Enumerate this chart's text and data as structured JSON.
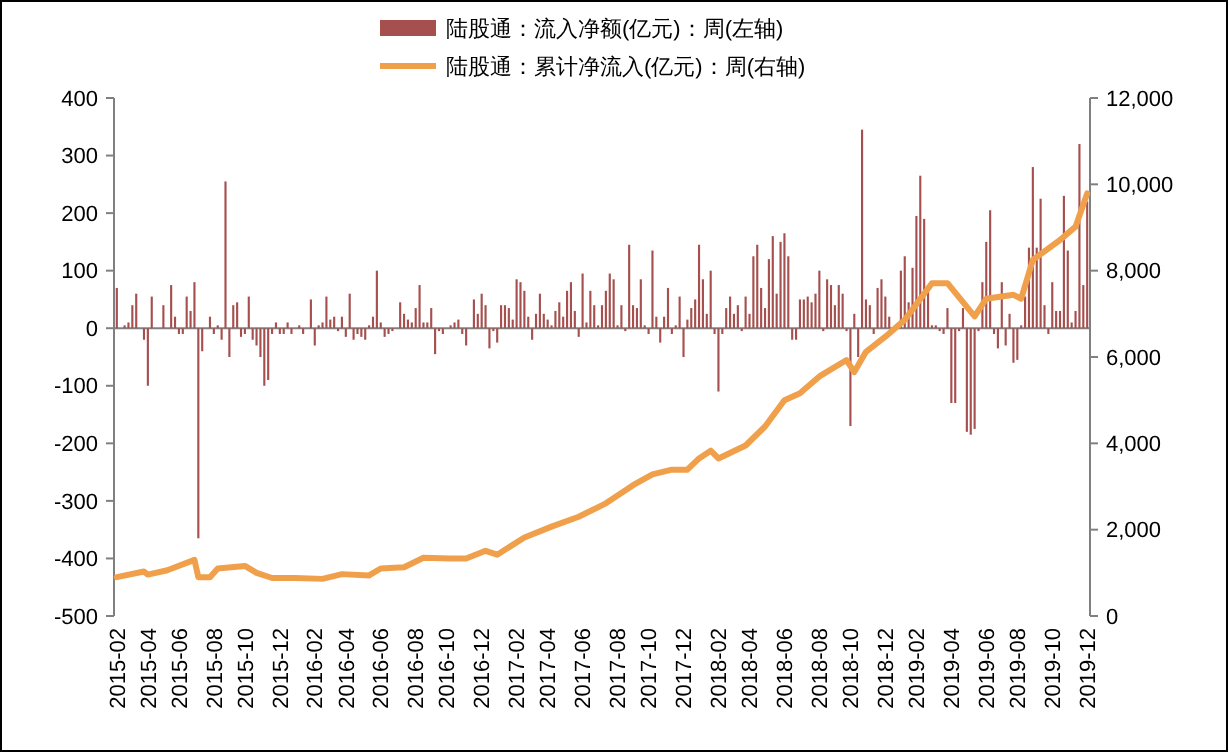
{
  "chart_data": {
    "type": "bar",
    "legend": "top",
    "categories": [
      "2015-02",
      null,
      null,
      null,
      null,
      null,
      null,
      null,
      "2015-04",
      null,
      null,
      null,
      null,
      null,
      null,
      null,
      "2015-06",
      null,
      null,
      null,
      null,
      null,
      null,
      null,
      null,
      "2015-08",
      null,
      null,
      null,
      null,
      null,
      null,
      null,
      "2015-10",
      null,
      null,
      null,
      null,
      null,
      null,
      null,
      null,
      "2015-12",
      null,
      null,
      null,
      null,
      null,
      null,
      null,
      null,
      "2016-02",
      null,
      null,
      null,
      null,
      null,
      null,
      null,
      "2016-04",
      null,
      null,
      null,
      null,
      null,
      null,
      null,
      null,
      "2016-06",
      null,
      null,
      null,
      null,
      null,
      null,
      null,
      null,
      "2016-08",
      null,
      null,
      null,
      null,
      null,
      null,
      null,
      "2016-10",
      null,
      null,
      null,
      null,
      null,
      null,
      null,
      null,
      "2016-12",
      null,
      null,
      null,
      null,
      null,
      null,
      null,
      null,
      "2017-02",
      null,
      null,
      null,
      null,
      null,
      null,
      null,
      "2017-04",
      null,
      null,
      null,
      null,
      null,
      null,
      null,
      null,
      "2017-06",
      null,
      null,
      null,
      null,
      null,
      null,
      null,
      null,
      "2017-08",
      null,
      null,
      null,
      null,
      null,
      null,
      null,
      "2017-10",
      null,
      null,
      null,
      null,
      null,
      null,
      null,
      null,
      "2017-12",
      null,
      null,
      null,
      null,
      null,
      null,
      null,
      null,
      "2018-02",
      null,
      null,
      null,
      null,
      null,
      null,
      null,
      "2018-04",
      null,
      null,
      null,
      null,
      null,
      null,
      null,
      null,
      "2018-06",
      null,
      null,
      null,
      null,
      null,
      null,
      null,
      null,
      "2018-08",
      null,
      null,
      null,
      null,
      null,
      null,
      null,
      "2018-10",
      null,
      null,
      null,
      null,
      null,
      null,
      null,
      null,
      "2018-12",
      null,
      null,
      null,
      null,
      null,
      null,
      null,
      "2019-02",
      null,
      null,
      null,
      null,
      null,
      null,
      null,
      null,
      "2019-04",
      null,
      null,
      null,
      null,
      null,
      null,
      null,
      null,
      "2019-06",
      null,
      null,
      null,
      null,
      null,
      null,
      null,
      "2019-08",
      null,
      null,
      null,
      null,
      null,
      null,
      null,
      null,
      "2019-10",
      null,
      null,
      null,
      null,
      null,
      null,
      null,
      null,
      "2019-12"
    ],
    "ylim": [
      -500,
      400
    ],
    "yticks": [
      -500,
      -400,
      -300,
      -200,
      -100,
      0,
      100,
      200,
      300,
      400
    ],
    "y2lim": [
      0,
      12000
    ],
    "y2ticks": [
      {
        "value": 0,
        "label": "0"
      },
      {
        "value": 2000,
        "label": "2,000"
      },
      {
        "value": 4000,
        "label": "4,000"
      },
      {
        "value": 6000,
        "label": "6,000"
      },
      {
        "value": 8000,
        "label": "8,000"
      },
      {
        "value": 10000,
        "label": "10,000"
      },
      {
        "value": 12000,
        "label": "12,000"
      }
    ],
    "series": [
      {
        "name": "陆股通：流入净额(亿元)：周(左轴)",
        "color": "#a5504e",
        "values": [
          70,
          null,
          5,
          10,
          40,
          60,
          null,
          -20,
          -100,
          55,
          null,
          null,
          40,
          null,
          75,
          20,
          -10,
          -10,
          55,
          30,
          80,
          -365,
          -40,
          null,
          20,
          -10,
          5,
          -20,
          255,
          -50,
          40,
          45,
          -15,
          -10,
          55,
          -20,
          -30,
          -50,
          -100,
          -90,
          -10,
          10,
          -10,
          -10,
          10,
          -10,
          null,
          5,
          -10,
          null,
          50,
          -30,
          5,
          10,
          55,
          15,
          20,
          -5,
          20,
          -15,
          60,
          -20,
          -10,
          -15,
          -20,
          5,
          20,
          100,
          10,
          -15,
          -10,
          -5,
          null,
          45,
          25,
          15,
          10,
          35,
          75,
          10,
          10,
          35,
          -45,
          -5,
          -10,
          null,
          5,
          10,
          15,
          -10,
          -30,
          null,
          50,
          25,
          60,
          40,
          -35,
          -5,
          -25,
          40,
          40,
          35,
          15,
          85,
          80,
          65,
          20,
          -20,
          25,
          60,
          25,
          15,
          5,
          30,
          45,
          20,
          65,
          80,
          30,
          -15,
          95,
          10,
          65,
          40,
          5,
          40,
          65,
          95,
          85,
          5,
          40,
          -5,
          145,
          40,
          35,
          85,
          5,
          -10,
          135,
          20,
          -25,
          20,
          70,
          -10,
          5,
          55,
          -50,
          15,
          35,
          50,
          145,
          85,
          25,
          100,
          -10,
          -110,
          -10,
          35,
          55,
          25,
          40,
          -5,
          55,
          25,
          125,
          145,
          70,
          35,
          120,
          160,
          60,
          150,
          165,
          125,
          -20,
          -20,
          50,
          50,
          55,
          45,
          60,
          100,
          -5,
          85,
          75,
          40,
          75,
          60,
          -5,
          -170,
          25,
          -50,
          345,
          50,
          40,
          -10,
          70,
          85,
          55,
          20,
          -5,
          5,
          100,
          125,
          45,
          105,
          195,
          265,
          190,
          75,
          5,
          5,
          -5,
          -10,
          35,
          -130,
          -130,
          -5,
          35,
          -180,
          -185,
          -175,
          -5,
          80,
          150,
          205,
          -10,
          -35,
          80,
          -30,
          25,
          -60,
          -55,
          5,
          55,
          140,
          280,
          140,
          225,
          40,
          -10,
          80,
          30,
          30,
          230,
          135,
          10,
          30,
          320,
          75,
          220
        ]
      },
      {
        "name": "陆股通：累计净流入(亿元)：周(右轴)",
        "type": "line",
        "axis": "y2",
        "color": "#f0a04b",
        "values": [
          900,
          null,
          null,
          null,
          null,
          null,
          null,
          1030,
          960,
          null,
          null,
          null,
          null,
          1060,
          null,
          null,
          null,
          null,
          null,
          null,
          1300,
          900,
          null,
          null,
          900,
          null,
          1100,
          null,
          null,
          null,
          null,
          null,
          null,
          1160,
          null,
          null,
          1000,
          null,
          null,
          null,
          880,
          null,
          null,
          null,
          null,
          null,
          880,
          null,
          null,
          null,
          null,
          null,
          null,
          860,
          null,
          null,
          null,
          null,
          970,
          null,
          null,
          null,
          null,
          null,
          null,
          940,
          null,
          null,
          1100,
          null,
          null,
          null,
          null,
          null,
          1130,
          null,
          null,
          null,
          null,
          1350,
          null,
          null,
          null,
          null,
          null,
          null,
          1330,
          null,
          null,
          null,
          1330,
          null,
          null,
          null,
          null,
          1510,
          null,
          null,
          1420,
          null,
          null,
          null,
          null,
          null,
          null,
          1820,
          null,
          null,
          null,
          null,
          null,
          null,
          2070,
          null,
          null,
          null,
          null,
          null,
          null,
          2300,
          null,
          null,
          null,
          null,
          null,
          null,
          2610,
          null,
          null,
          null,
          null,
          null,
          null,
          3030,
          null,
          null,
          null,
          null,
          3280,
          null,
          null,
          null,
          null,
          3390,
          null,
          null,
          null,
          3390,
          null,
          null,
          3650,
          null,
          null,
          3830,
          null,
          3650,
          null,
          null,
          null,
          null,
          null,
          null,
          3950,
          null,
          null,
          null,
          null,
          4390,
          null,
          null,
          null,
          null,
          5000,
          null,
          null,
          null,
          5160,
          null,
          null,
          null,
          null,
          5550,
          null,
          null,
          null,
          null,
          null,
          null,
          5930,
          null,
          5650,
          null,
          null,
          6120,
          null,
          null,
          null,
          null,
          6470,
          null,
          null,
          null,
          null,
          6860,
          null,
          null,
          null,
          null,
          null,
          null,
          7710,
          null,
          null,
          null,
          7710,
          null,
          null,
          null,
          null,
          null,
          null,
          6940,
          null,
          null,
          7350,
          null,
          null,
          null,
          null,
          null,
          null,
          7440,
          null,
          7350,
          null,
          null,
          8250,
          null,
          null,
          null,
          null,
          null,
          null,
          8710,
          null,
          null,
          null,
          9020,
          null,
          null,
          9790
        ]
      }
    ]
  }
}
